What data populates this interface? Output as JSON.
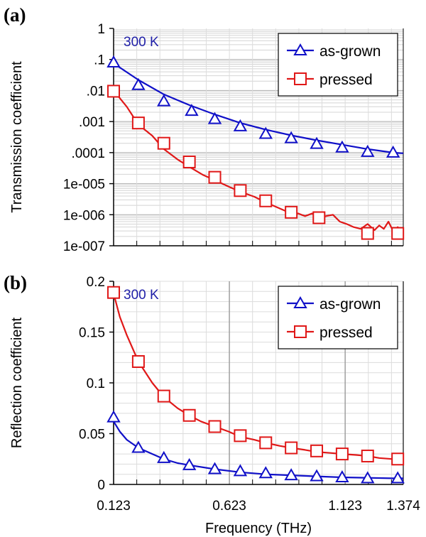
{
  "chart_data": [
    {
      "type": "line",
      "panel_label": "(a)",
      "ylabel": "Transmission coefficient",
      "xlabel": "",
      "annotation": "300 K",
      "yscale": "log",
      "ylim": [
        1e-07,
        1
      ],
      "xlim": [
        0.123,
        1.374
      ],
      "yticks": [
        1,
        0.1,
        0.01,
        0.001,
        0.0001,
        1e-05,
        1e-06,
        1e-07
      ],
      "ytick_labels": [
        "1",
        ".1",
        ".01",
        ".001",
        ".0001",
        "1e-005",
        "1e-006",
        "1e-007"
      ],
      "grid": true,
      "legend_position": "top-right",
      "series": [
        {
          "name": "as-grown",
          "color": "#1010c8",
          "marker": "triangle",
          "x": [
            0.123,
            0.23,
            0.34,
            0.45,
            0.56,
            0.67,
            0.78,
            0.89,
            1.0,
            1.11,
            1.22,
            1.33,
            1.374
          ],
          "y": [
            0.075,
            0.022,
            0.0075,
            0.0034,
            0.0017,
            0.0009,
            0.00055,
            0.00036,
            0.00025,
            0.00018,
            0.00013,
            0.0001,
            9.5e-05
          ],
          "markers_x": [
            0.123,
            0.23,
            0.34,
            0.46,
            0.56,
            0.67,
            0.78,
            0.89,
            1.0,
            1.11,
            1.22,
            1.33
          ],
          "markers_y": [
            0.08,
            0.015,
            0.0045,
            0.0022,
            0.0012,
            0.0007,
            0.0004,
            0.00029,
            0.00019,
            0.000145,
            0.000105,
            0.0001
          ]
        },
        {
          "name": "pressed",
          "color": "#e01818",
          "marker": "square",
          "x": [
            0.123,
            0.18,
            0.23,
            0.29,
            0.34,
            0.4,
            0.45,
            0.51,
            0.56,
            0.62,
            0.67,
            0.73,
            0.78,
            0.84,
            0.89,
            0.92,
            0.95,
            0.98,
            1.01,
            1.04,
            1.07,
            1.1,
            1.13,
            1.16,
            1.19,
            1.22,
            1.25,
            1.27,
            1.29,
            1.31,
            1.33,
            1.35,
            1.374
          ],
          "y": [
            0.01,
            0.003,
            0.0008,
            0.00035,
            0.00013,
            6e-05,
            3.5e-05,
            1.9e-05,
            1.3e-05,
            8e-06,
            5.5e-06,
            3.8e-06,
            2.5e-06,
            1.6e-06,
            1.1e-06,
            1.1e-06,
            9e-07,
            1.1e-06,
            8e-07,
            9e-07,
            1e-06,
            6e-07,
            5e-07,
            4e-07,
            3.5e-07,
            5e-07,
            3.2e-07,
            4.5e-07,
            3.5e-07,
            6e-07,
            3e-07,
            4e-07,
            2.5e-07
          ],
          "markers_x": [
            0.123,
            0.23,
            0.34,
            0.45,
            0.56,
            0.67,
            0.78,
            0.89,
            1.01,
            1.22,
            1.35
          ],
          "markers_y": [
            0.0095,
            0.0009,
            0.0002,
            5e-05,
            1.6e-05,
            6e-06,
            2.8e-06,
            1.2e-06,
            8e-07,
            2.5e-07,
            2.5e-07
          ]
        }
      ]
    },
    {
      "type": "line",
      "panel_label": "(b)",
      "ylabel": "Reflection coefficient",
      "xlabel": "Frequency (THz)",
      "annotation": "300 K",
      "ylim": [
        0,
        0.2
      ],
      "xlim": [
        0.123,
        1.374
      ],
      "yticks": [
        0.2,
        0.15,
        0.1,
        0.05,
        0
      ],
      "ytick_labels": [
        "0.2",
        "0.15",
        "0.1",
        "0.05",
        "0"
      ],
      "xticks": [
        0.123,
        0.623,
        1.123,
        1.374
      ],
      "xtick_labels": [
        "0.123",
        "0.623",
        "1.123",
        "1.374"
      ],
      "grid": true,
      "legend_position": "top-right",
      "series": [
        {
          "name": "as-grown",
          "color": "#1010c8",
          "marker": "triangle",
          "x": [
            0.123,
            0.15,
            0.18,
            0.23,
            0.29,
            0.34,
            0.4,
            0.45,
            0.56,
            0.67,
            0.78,
            0.89,
            1.0,
            1.11,
            1.22,
            1.33,
            1.374
          ],
          "y": [
            0.062,
            0.052,
            0.044,
            0.036,
            0.03,
            0.025,
            0.021,
            0.019,
            0.015,
            0.012,
            0.01,
            0.009,
            0.008,
            0.007,
            0.0065,
            0.006,
            0.006
          ],
          "markers_x": [
            0.123,
            0.23,
            0.34,
            0.45,
            0.56,
            0.67,
            0.78,
            0.89,
            1.0,
            1.11,
            1.22,
            1.35
          ],
          "markers_y": [
            0.066,
            0.036,
            0.026,
            0.019,
            0.015,
            0.013,
            0.011,
            0.009,
            0.008,
            0.007,
            0.006,
            0.006
          ]
        },
        {
          "name": "pressed",
          "color": "#e01818",
          "marker": "square",
          "x": [
            0.123,
            0.15,
            0.18,
            0.23,
            0.29,
            0.34,
            0.4,
            0.45,
            0.5,
            0.56,
            0.62,
            0.67,
            0.73,
            0.78,
            0.84,
            0.89,
            0.95,
            1.0,
            1.06,
            1.11,
            1.17,
            1.22,
            1.27,
            1.33,
            1.374
          ],
          "y": [
            0.188,
            0.165,
            0.147,
            0.121,
            0.1,
            0.086,
            0.075,
            0.068,
            0.062,
            0.057,
            0.052,
            0.047,
            0.044,
            0.041,
            0.038,
            0.036,
            0.034,
            0.032,
            0.031,
            0.03,
            0.029,
            0.028,
            0.026,
            0.025,
            0.024
          ],
          "markers_x": [
            0.123,
            0.23,
            0.34,
            0.45,
            0.56,
            0.67,
            0.78,
            0.89,
            1.0,
            1.11,
            1.22,
            1.35
          ],
          "markers_y": [
            0.189,
            0.121,
            0.087,
            0.068,
            0.057,
            0.048,
            0.041,
            0.036,
            0.033,
            0.03,
            0.028,
            0.025
          ]
        }
      ]
    }
  ]
}
